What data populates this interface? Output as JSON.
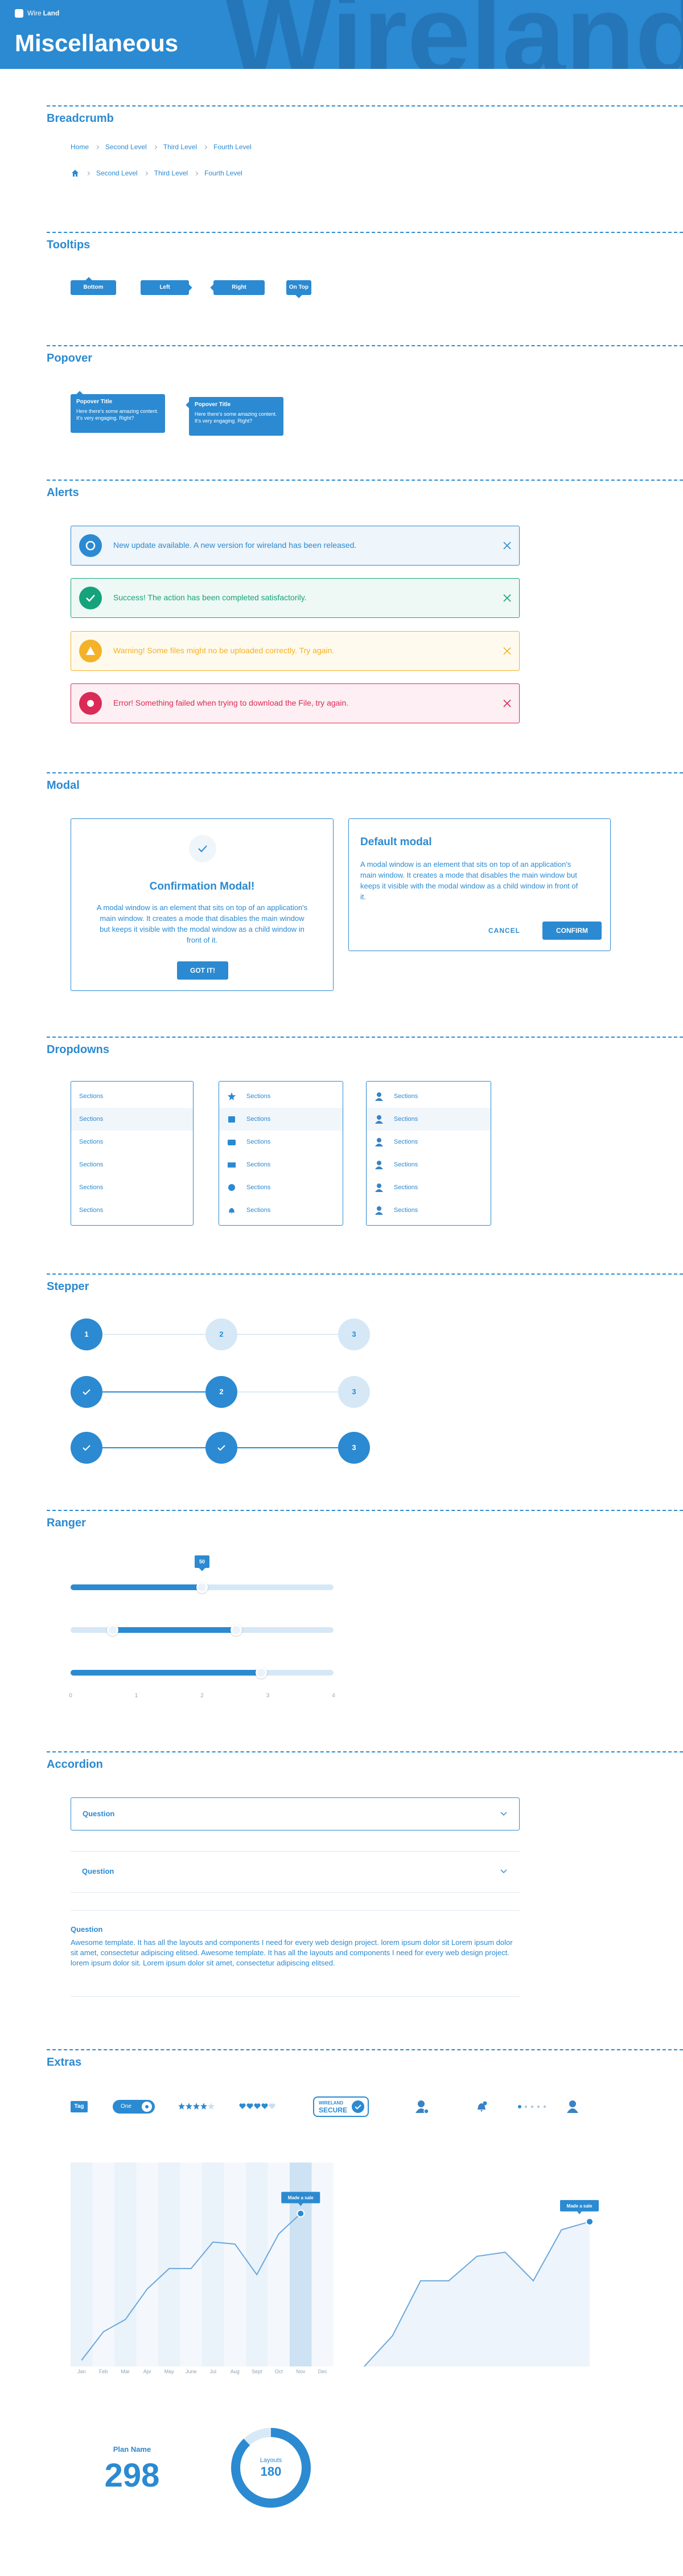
{
  "header": {
    "logo_light": "Wire",
    "logo_bold": "Land",
    "title": "Miscellaneous",
    "watermark": "Wireland"
  },
  "breadcrumb": {
    "title": "Breadcrumb",
    "trails": [
      [
        "Home",
        "Second Level",
        "Third Level",
        "Fourth Level"
      ],
      [
        "Second Level",
        "Third Level",
        "Fourth Level"
      ]
    ]
  },
  "tooltips": {
    "title": "Tooltips",
    "items": [
      "Bottom",
      "Left",
      "Right",
      "On Top"
    ]
  },
  "popover": {
    "title": "Popover",
    "items": [
      {
        "title": "Popover Title",
        "text": "Here there's some amazing content. It's very engaging. Right?"
      },
      {
        "title": "Popover Title",
        "text": "Here there's some amazing content. It's very engaging. Right?"
      }
    ]
  },
  "alerts": {
    "title": "Alerts",
    "items": [
      {
        "kind": "info",
        "text": "New update available. A new version for wireland has been released."
      },
      {
        "kind": "success",
        "text": "Success! The action has been completed satisfactorily."
      },
      {
        "kind": "warning",
        "text": "Warning! Some files might no be uploaded correctly. Try again."
      },
      {
        "kind": "error",
        "text": "Error! Something failed when trying to download the File, try again."
      }
    ]
  },
  "modal": {
    "title": "Modal",
    "confirmation": {
      "title": "Confirmation Modal!",
      "text": "A modal window is an element that sits on top of an application's main window. It creates a mode that disables the main window but keeps it visible with the modal window as a child window in front of it.",
      "button": "GOT IT!"
    },
    "default": {
      "title": "Default modal",
      "text": "A modal window is an element that sits on top of an application's main window. It creates a mode that disables the main window but keeps it visible with the modal window as a child window in front of it.",
      "cancel": "CANCEL",
      "confirm": "CONFIRM"
    }
  },
  "dropdowns": {
    "title": "Dropdowns",
    "menus": [
      {
        "icons": "none",
        "items": [
          "Sections",
          "Sections",
          "Sections",
          "Sections",
          "Sections",
          "Sections"
        ]
      },
      {
        "icons": "glyph",
        "items": [
          "Sections",
          "Sections",
          "Sections",
          "Sections",
          "Sections",
          "Sections"
        ]
      },
      {
        "icons": "avatar",
        "items": [
          "Sections",
          "Sections",
          "Sections",
          "Sections",
          "Sections",
          "Sections"
        ]
      }
    ]
  },
  "stepper": {
    "title": "Stepper",
    "rows": [
      {
        "steps": [
          1,
          2,
          3
        ],
        "current": 1
      },
      {
        "steps": [
          1,
          2,
          3
        ],
        "current": 2
      },
      {
        "steps": [
          1,
          2,
          3
        ],
        "current": 3
      }
    ]
  },
  "ranger": {
    "title": "Ranger",
    "sliders": [
      {
        "min": 0,
        "max": 100,
        "value": 50
      },
      {
        "min": 0,
        "max": 100,
        "range": [
          16,
          63
        ]
      },
      {
        "min": 0,
        "max": 4,
        "value": 2.9,
        "ticks": [
          0,
          1,
          2,
          3,
          4
        ]
      }
    ]
  },
  "accordion": {
    "title": "Accordion",
    "items": [
      {
        "question": "Question"
      },
      {
        "question": "Question"
      },
      {
        "question": "Question",
        "answer": "Awesome template. It has all the layouts and components I need for every web design project. lorem ipsum dolor sit Lorem ipsum dolor sit amet, consectetur adipiscing elitsed. Awesome template. It has all the layouts and components I need for every web design project. lorem ipsum dolor sit. Lorem ipsum dolor sit amet, consectetur adipiscing elitsed."
      }
    ]
  },
  "extras": {
    "title": "Extras",
    "tag": "Tag",
    "toggle": "One",
    "rating": {
      "value": 4,
      "max": 5
    },
    "hearts": {
      "value": 4,
      "max": 5
    },
    "badge": {
      "top": "WIRELAND",
      "bottom": "SECURE"
    },
    "charts": [
      {
        "type": "line",
        "categories": [
          "Jan",
          "Feb",
          "Mar",
          "Apr",
          "May",
          "June",
          "Jul",
          "Aug",
          "Sept",
          "Oct",
          "Nov",
          "Dec"
        ],
        "values": [
          3,
          17,
          23,
          38,
          48,
          48,
          61,
          60,
          45,
          65,
          75,
          null
        ],
        "ylim": [
          0,
          100
        ],
        "tooltip": "Made a sale"
      },
      {
        "type": "area",
        "values": [
          0,
          15,
          42,
          42,
          54,
          56,
          42,
          67,
          71
        ],
        "ylim": [
          0,
          100
        ],
        "tooltip": "Made a sale"
      }
    ],
    "plan": {
      "label": "Plan Name",
      "value": 298
    },
    "donut": {
      "label": "Layouts",
      "value": 180,
      "percent": 88
    }
  }
}
